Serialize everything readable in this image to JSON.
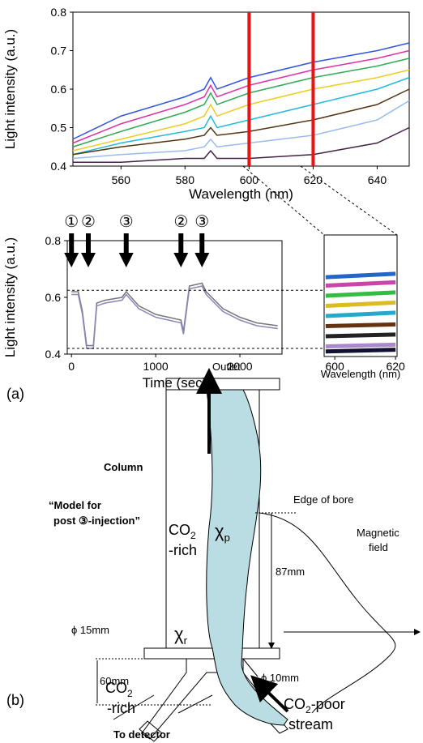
{
  "chart_data": [
    {
      "type": "line",
      "x_label": "Wavelength (nm)",
      "y_label": "Light intensity (a.u.)",
      "x": [
        545,
        560,
        580,
        586,
        588,
        590,
        600,
        620,
        640,
        650
      ],
      "series": [
        {
          "color": "#3355dd",
          "values": [
            0.47,
            0.53,
            0.58,
            0.6,
            0.63,
            0.6,
            0.63,
            0.67,
            0.7,
            0.72
          ]
        },
        {
          "color": "#dd33aa",
          "values": [
            0.46,
            0.51,
            0.56,
            0.58,
            0.61,
            0.58,
            0.61,
            0.65,
            0.68,
            0.7
          ]
        },
        {
          "color": "#33aa55",
          "values": [
            0.45,
            0.49,
            0.54,
            0.56,
            0.59,
            0.56,
            0.59,
            0.63,
            0.66,
            0.68
          ]
        },
        {
          "color": "#eecc22",
          "values": [
            0.44,
            0.47,
            0.51,
            0.53,
            0.56,
            0.53,
            0.56,
            0.6,
            0.63,
            0.65
          ]
        },
        {
          "color": "#22bbdd",
          "values": [
            0.43,
            0.46,
            0.49,
            0.5,
            0.53,
            0.5,
            0.52,
            0.56,
            0.6,
            0.63
          ]
        },
        {
          "color": "#553311",
          "values": [
            0.43,
            0.45,
            0.47,
            0.48,
            0.5,
            0.48,
            0.49,
            0.52,
            0.56,
            0.6
          ]
        },
        {
          "color": "#99bbee",
          "values": [
            0.42,
            0.43,
            0.44,
            0.45,
            0.47,
            0.45,
            0.46,
            0.48,
            0.52,
            0.57
          ]
        },
        {
          "color": "#442244",
          "values": [
            0.41,
            0.41,
            0.42,
            0.42,
            0.44,
            0.42,
            0.42,
            0.43,
            0.46,
            0.5
          ]
        }
      ],
      "highlight_x": [
        600,
        620
      ],
      "highlight_color": "#ee1111",
      "xlim": [
        545,
        650
      ],
      "xticks": [
        560,
        580,
        600,
        620,
        640
      ],
      "ylim": [
        0.4,
        0.8
      ],
      "yticks": [
        0.4,
        0.5,
        0.6,
        0.7,
        0.8
      ]
    },
    {
      "type": "line",
      "x_label": "Time (sec)",
      "y_label": "Light intensity (a.u.)",
      "x": [
        0,
        80,
        130,
        180,
        260,
        300,
        400,
        600,
        650,
        800,
        1000,
        1300,
        1330,
        1400,
        1550,
        1600,
        1800,
        2000,
        2200,
        2450
      ],
      "series": [
        {
          "color": "#777777",
          "values": [
            0.62,
            0.62,
            0.55,
            0.43,
            0.43,
            0.58,
            0.59,
            0.6,
            0.62,
            0.57,
            0.54,
            0.52,
            0.48,
            0.64,
            0.65,
            0.62,
            0.56,
            0.53,
            0.51,
            0.5
          ]
        },
        {
          "color": "#8888bb",
          "values": [
            0.61,
            0.61,
            0.54,
            0.42,
            0.42,
            0.57,
            0.58,
            0.59,
            0.61,
            0.56,
            0.53,
            0.51,
            0.47,
            0.63,
            0.64,
            0.61,
            0.55,
            0.52,
            0.5,
            0.49
          ]
        }
      ],
      "arrows": [
        {
          "x": 0,
          "label": "①"
        },
        {
          "x": 200,
          "label": "②"
        },
        {
          "x": 650,
          "label": "③"
        },
        {
          "x": 1300,
          "label": "②"
        },
        {
          "x": 1550,
          "label": "③"
        }
      ],
      "reference_y": [
        0.625,
        0.42
      ],
      "xlim": [
        -50,
        2500
      ],
      "xticks": [
        0,
        1000,
        2000
      ],
      "ylim": [
        0.4,
        0.8
      ],
      "yticks": [
        0.4,
        0.6,
        0.8
      ]
    },
    {
      "type": "line",
      "x_label": "Wavelength (nm)",
      "x": [
        597,
        620
      ],
      "series": [
        {
          "color": "#2266cc",
          "values": [
            0.655,
            0.665
          ]
        },
        {
          "color": "#cc44aa",
          "values": [
            0.63,
            0.64
          ]
        },
        {
          "color": "#33bb44",
          "values": [
            0.6,
            0.61
          ]
        },
        {
          "color": "#ddbb22",
          "values": [
            0.57,
            0.58
          ]
        },
        {
          "color": "#22aacc",
          "values": [
            0.54,
            0.55
          ]
        },
        {
          "color": "#663311",
          "values": [
            0.51,
            0.515
          ]
        },
        {
          "color": "#222222",
          "values": [
            0.48,
            0.485
          ]
        },
        {
          "color": "#aa88cc",
          "values": [
            0.45,
            0.455
          ]
        },
        {
          "color": "#111133",
          "values": [
            0.435,
            0.44
          ]
        }
      ],
      "xlim": [
        596.5,
        620.5
      ],
      "xticks": [
        600,
        620
      ],
      "ylim": [
        0.42,
        0.78
      ]
    }
  ],
  "panel_a": "(a)",
  "panel_b": "(b)",
  "diagram": {
    "outlet": "Outlet",
    "column": "Column",
    "model": [
      "“Model for",
      "post ③-injection”"
    ],
    "co2_rich_top": {
      "base": "CO",
      "sub": "2",
      "line2": "-rich"
    },
    "chi_p": {
      "base": "χ",
      "sub": "p"
    },
    "chi_r": {
      "base": "χ",
      "sub": "r"
    },
    "edge": "Edge of bore",
    "field": [
      "Magnetic",
      "field"
    ],
    "d87": "87mm",
    "phi15": "ϕ 15mm",
    "d60": "60mm",
    "phi10": "ϕ 10mm",
    "co2_rich_bottom": {
      "base": "CO",
      "sub": "2",
      "line2": "-rich"
    },
    "detector": "To detector",
    "co2_poor": {
      "base": "CO",
      "sub": "2",
      "after": "-poor",
      "line2": "stream"
    }
  }
}
